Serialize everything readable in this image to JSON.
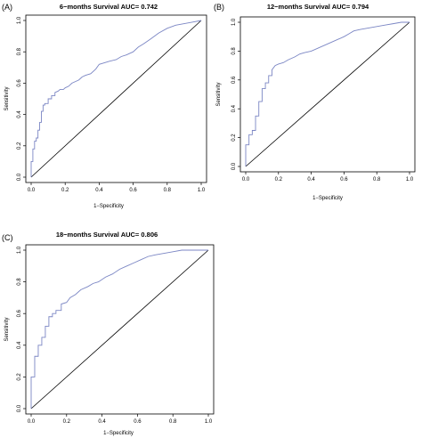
{
  "chart_data": [
    {
      "panel_label": "(A)",
      "type": "line",
      "title": "6−months Survival AUC= 0.742",
      "xlabel": "1−Specificity",
      "ylabel": "Sensitivity",
      "xlim": [
        0,
        1
      ],
      "ylim": [
        0,
        1
      ],
      "xticks": [
        "0.0",
        "0.2",
        "0.4",
        "0.6",
        "0.8",
        "1.0"
      ],
      "yticks": [
        "0.0",
        "0.2",
        "0.4",
        "0.6",
        "0.8",
        "1.0"
      ],
      "grid": false,
      "colors": {
        "roc": "#7b86c4",
        "reference": "#000000"
      },
      "series": [
        {
          "x": [
            0,
            0.0,
            0.01,
            0.01,
            0.02,
            0.02,
            0.03,
            0.03,
            0.04,
            0.04,
            0.05,
            0.05,
            0.06,
            0.06,
            0.07,
            0.07,
            0.08,
            0.08,
            0.1,
            0.1,
            0.12,
            0.12,
            0.14,
            0.14,
            0.16,
            0.17,
            0.19,
            0.2,
            0.22,
            0.24,
            0.26,
            0.28,
            0.3,
            0.32,
            0.35,
            0.38,
            0.4,
            0.43,
            0.46,
            0.5,
            0.53,
            0.56,
            0.6,
            0.63,
            0.66,
            0.7,
            0.75,
            0.8,
            0.85,
            0.9,
            0.95,
            1.0
          ],
          "y": [
            0,
            0.1,
            0.1,
            0.18,
            0.18,
            0.23,
            0.23,
            0.25,
            0.25,
            0.3,
            0.3,
            0.35,
            0.35,
            0.42,
            0.42,
            0.46,
            0.46,
            0.47,
            0.47,
            0.5,
            0.5,
            0.52,
            0.52,
            0.54,
            0.55,
            0.56,
            0.56,
            0.57,
            0.58,
            0.6,
            0.61,
            0.62,
            0.64,
            0.65,
            0.66,
            0.69,
            0.72,
            0.73,
            0.74,
            0.75,
            0.77,
            0.78,
            0.8,
            0.83,
            0.85,
            0.88,
            0.92,
            0.95,
            0.97,
            0.98,
            0.99,
            1.0
          ]
        }
      ]
    },
    {
      "panel_label": "(B)",
      "type": "line",
      "title": "12−months Survival AUC= 0.794",
      "xlabel": "1−Specificity",
      "ylabel": "Sensitivity",
      "xlim": [
        0,
        1
      ],
      "ylim": [
        0,
        1
      ],
      "xticks": [
        "0.0",
        "0.2",
        "0.4",
        "0.6",
        "0.8",
        "1.0"
      ],
      "yticks": [
        "0.0",
        "0.2",
        "0.4",
        "0.6",
        "0.8",
        "1.0"
      ],
      "grid": false,
      "colors": {
        "roc": "#7b86c4",
        "reference": "#000000"
      },
      "series": [
        {
          "x": [
            0,
            0.0,
            0.02,
            0.02,
            0.04,
            0.04,
            0.06,
            0.06,
            0.08,
            0.08,
            0.1,
            0.1,
            0.12,
            0.12,
            0.14,
            0.14,
            0.16,
            0.16,
            0.18,
            0.2,
            0.23,
            0.26,
            0.3,
            0.33,
            0.36,
            0.4,
            0.44,
            0.48,
            0.52,
            0.56,
            0.6,
            0.63,
            0.66,
            0.7,
            0.75,
            0.8,
            0.85,
            0.9,
            0.95,
            1.0
          ],
          "y": [
            0,
            0.15,
            0.15,
            0.22,
            0.22,
            0.25,
            0.25,
            0.35,
            0.35,
            0.45,
            0.45,
            0.54,
            0.54,
            0.58,
            0.58,
            0.63,
            0.63,
            0.67,
            0.7,
            0.71,
            0.72,
            0.74,
            0.76,
            0.78,
            0.79,
            0.8,
            0.82,
            0.84,
            0.86,
            0.88,
            0.9,
            0.92,
            0.94,
            0.95,
            0.96,
            0.97,
            0.98,
            0.99,
            1.0,
            1.0
          ]
        }
      ]
    },
    {
      "panel_label": "(C)",
      "type": "line",
      "title": "18−months Survival AUC= 0.806",
      "xlabel": "1−Specificity",
      "ylabel": "Sensitivity",
      "xlim": [
        0,
        1
      ],
      "ylim": [
        0,
        1
      ],
      "xticks": [
        "0.0",
        "0.2",
        "0.4",
        "0.6",
        "0.8",
        "1.0"
      ],
      "yticks": [
        "0.0",
        "0.2",
        "0.4",
        "0.6",
        "0.8",
        "1.0"
      ],
      "grid": false,
      "colors": {
        "roc": "#7b86c4",
        "reference": "#000000"
      },
      "series": [
        {
          "x": [
            0,
            0.0,
            0.02,
            0.02,
            0.04,
            0.04,
            0.06,
            0.06,
            0.08,
            0.08,
            0.1,
            0.1,
            0.12,
            0.12,
            0.14,
            0.14,
            0.17,
            0.17,
            0.2,
            0.22,
            0.25,
            0.28,
            0.32,
            0.35,
            0.38,
            0.42,
            0.46,
            0.5,
            0.54,
            0.58,
            0.62,
            0.66,
            0.7,
            0.75,
            0.8,
            0.85,
            0.9,
            0.95,
            1.0
          ],
          "y": [
            0,
            0.2,
            0.2,
            0.33,
            0.33,
            0.4,
            0.4,
            0.45,
            0.45,
            0.52,
            0.52,
            0.58,
            0.58,
            0.6,
            0.6,
            0.62,
            0.62,
            0.66,
            0.67,
            0.7,
            0.72,
            0.75,
            0.77,
            0.79,
            0.8,
            0.83,
            0.85,
            0.88,
            0.9,
            0.92,
            0.94,
            0.96,
            0.97,
            0.98,
            0.99,
            1.0,
            1.0,
            1.0,
            1.0
          ]
        }
      ]
    }
  ]
}
